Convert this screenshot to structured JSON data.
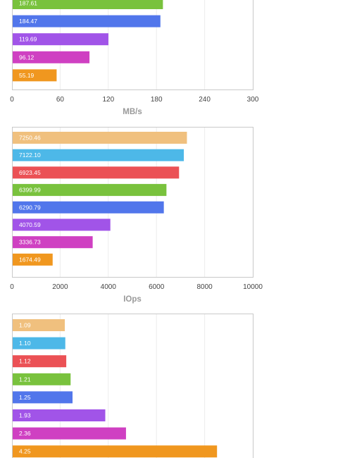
{
  "palette": [
    "#f0c07e",
    "#4db8e8",
    "#eb5155",
    "#79c23d",
    "#5176eb",
    "#a154e8",
    "#cf40c2",
    "#f0971f"
  ],
  "chart_data": [
    {
      "type": "bar",
      "orientation": "horizontal",
      "xlabel": "MB/s",
      "xlim": [
        0,
        300
      ],
      "xticks": [
        "0",
        "60",
        "120",
        "180",
        "240",
        "300"
      ],
      "grid": true,
      "visible_bars": [
        {
          "value": 187.61,
          "label": "187.61",
          "color": "#79c23d"
        },
        {
          "value": 184.47,
          "label": "184.47",
          "color": "#5176eb"
        },
        {
          "value": 119.69,
          "label": "119.69",
          "color": "#a154e8"
        },
        {
          "value": 96.12,
          "label": "96.12",
          "color": "#cf40c2"
        },
        {
          "value": 55.19,
          "label": "55.19",
          "color": "#f0971f"
        }
      ]
    },
    {
      "type": "bar",
      "orientation": "horizontal",
      "xlabel": "IOps",
      "xlim": [
        0,
        10000
      ],
      "xticks": [
        "0",
        "2000",
        "4000",
        "6000",
        "8000",
        "10000"
      ],
      "grid": true,
      "visible_bars": [
        {
          "value": 7250.46,
          "label": "7250.46",
          "color": "#f0c07e"
        },
        {
          "value": 7122.1,
          "label": "7122.10",
          "color": "#4db8e8"
        },
        {
          "value": 6923.45,
          "label": "6923.45",
          "color": "#eb5155"
        },
        {
          "value": 6399.99,
          "label": "6399.99",
          "color": "#79c23d"
        },
        {
          "value": 6290.79,
          "label": "6290.79",
          "color": "#5176eb"
        },
        {
          "value": 4070.59,
          "label": "4070.59",
          "color": "#a154e8"
        },
        {
          "value": 3336.73,
          "label": "3336.73",
          "color": "#cf40c2"
        },
        {
          "value": 1674.49,
          "label": "1674.49",
          "color": "#f0971f"
        }
      ]
    },
    {
      "type": "bar",
      "orientation": "horizontal",
      "xlabel": "",
      "xlim": [
        0,
        5
      ],
      "xticks": [],
      "grid": true,
      "visible_bars": [
        {
          "value": 1.09,
          "label": "1.09",
          "color": "#f0c07e"
        },
        {
          "value": 1.1,
          "label": "1.10",
          "color": "#4db8e8"
        },
        {
          "value": 1.12,
          "label": "1.12",
          "color": "#eb5155"
        },
        {
          "value": 1.21,
          "label": "1.21",
          "color": "#79c23d"
        },
        {
          "value": 1.25,
          "label": "1.25",
          "color": "#5176eb"
        },
        {
          "value": 1.93,
          "label": "1.93",
          "color": "#a154e8"
        },
        {
          "value": 2.36,
          "label": "2.36",
          "color": "#cf40c2"
        },
        {
          "value": 4.25,
          "label": "4.25",
          "color": "#f0971f"
        }
      ]
    }
  ]
}
